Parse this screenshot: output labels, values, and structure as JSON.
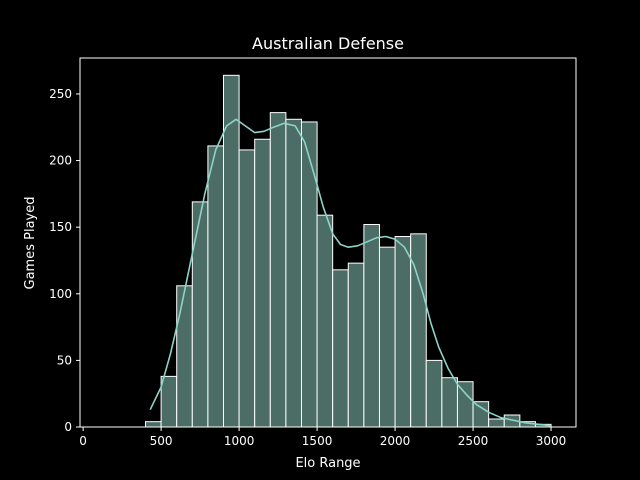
{
  "chart_data": {
    "type": "bar",
    "title": "Australian Defense",
    "xlabel": "Elo Range",
    "ylabel": "Games Played",
    "xlim": [
      -20,
      3160
    ],
    "ylim": [
      0,
      277
    ],
    "xticks": [
      0,
      500,
      1000,
      1500,
      2000,
      2500,
      3000
    ],
    "yticks": [
      0,
      50,
      100,
      150,
      200,
      250
    ],
    "grid": false,
    "legend": "none",
    "bar_fill": "#4b6d65",
    "bar_edge": "#ffffff",
    "kde_color": "#8dd3c7",
    "background": "#000000",
    "bins": [
      {
        "x0": 100,
        "x1": 200,
        "value": 0
      },
      {
        "x0": 200,
        "x1": 300,
        "value": 0
      },
      {
        "x0": 300,
        "x1": 400,
        "value": 0
      },
      {
        "x0": 400,
        "x1": 500,
        "value": 4
      },
      {
        "x0": 500,
        "x1": 600,
        "value": 38
      },
      {
        "x0": 600,
        "x1": 700,
        "value": 106
      },
      {
        "x0": 700,
        "x1": 800,
        "value": 169
      },
      {
        "x0": 800,
        "x1": 900,
        "value": 211
      },
      {
        "x0": 900,
        "x1": 1000,
        "value": 264
      },
      {
        "x0": 1000,
        "x1": 1100,
        "value": 208
      },
      {
        "x0": 1100,
        "x1": 1200,
        "value": 216
      },
      {
        "x0": 1200,
        "x1": 1300,
        "value": 236
      },
      {
        "x0": 1300,
        "x1": 1400,
        "value": 231
      },
      {
        "x0": 1400,
        "x1": 1500,
        "value": 229
      },
      {
        "x0": 1500,
        "x1": 1600,
        "value": 159
      },
      {
        "x0": 1600,
        "x1": 1700,
        "value": 118
      },
      {
        "x0": 1700,
        "x1": 1800,
        "value": 123
      },
      {
        "x0": 1800,
        "x1": 1900,
        "value": 152
      },
      {
        "x0": 1900,
        "x1": 2000,
        "value": 135
      },
      {
        "x0": 2000,
        "x1": 2100,
        "value": 143
      },
      {
        "x0": 2100,
        "x1": 2200,
        "value": 145
      },
      {
        "x0": 2200,
        "x1": 2300,
        "value": 50
      },
      {
        "x0": 2300,
        "x1": 2400,
        "value": 37
      },
      {
        "x0": 2400,
        "x1": 2500,
        "value": 34
      },
      {
        "x0": 2500,
        "x1": 2600,
        "value": 19
      },
      {
        "x0": 2600,
        "x1": 2700,
        "value": 6
      },
      {
        "x0": 2700,
        "x1": 2800,
        "value": 9
      },
      {
        "x0": 2800,
        "x1": 2900,
        "value": 4
      },
      {
        "x0": 2900,
        "x1": 3000,
        "value": 2
      }
    ],
    "kde": [
      [
        430,
        13
      ],
      [
        500,
        30
      ],
      [
        560,
        55
      ],
      [
        620,
        85
      ],
      [
        700,
        130
      ],
      [
        780,
        175
      ],
      [
        850,
        208
      ],
      [
        920,
        226
      ],
      [
        980,
        231
      ],
      [
        1040,
        226
      ],
      [
        1100,
        221
      ],
      [
        1160,
        222
      ],
      [
        1220,
        225
      ],
      [
        1290,
        228
      ],
      [
        1360,
        226
      ],
      [
        1420,
        214
      ],
      [
        1480,
        190
      ],
      [
        1540,
        165
      ],
      [
        1600,
        145
      ],
      [
        1650,
        137
      ],
      [
        1700,
        135
      ],
      [
        1760,
        136
      ],
      [
        1820,
        139
      ],
      [
        1880,
        142
      ],
      [
        1940,
        143
      ],
      [
        2000,
        141
      ],
      [
        2060,
        135
      ],
      [
        2120,
        122
      ],
      [
        2180,
        100
      ],
      [
        2230,
        78
      ],
      [
        2280,
        60
      ],
      [
        2340,
        44
      ],
      [
        2400,
        32
      ],
      [
        2460,
        24
      ],
      [
        2520,
        17
      ],
      [
        2600,
        11
      ],
      [
        2680,
        7
      ],
      [
        2760,
        5
      ],
      [
        2840,
        3
      ],
      [
        2920,
        2
      ],
      [
        3000,
        1
      ]
    ]
  }
}
